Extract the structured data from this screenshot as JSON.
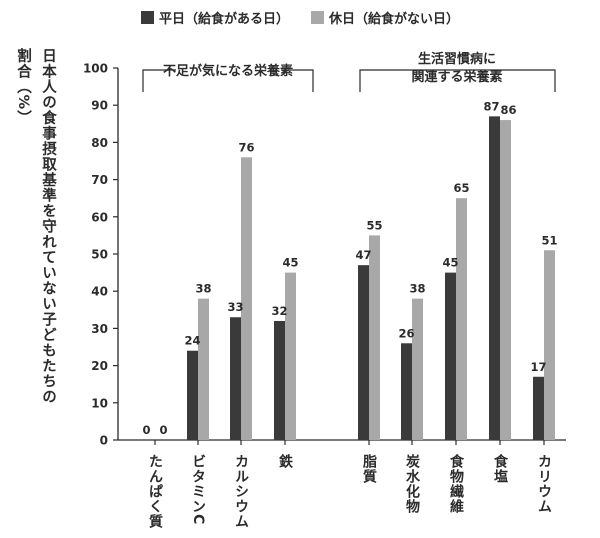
{
  "legend": {
    "weekday": "平日（給食がある日）",
    "holiday": "休日（給食がない日）"
  },
  "colors": {
    "weekday": "#3a3a3a",
    "holiday": "#a8a8a8",
    "axis": "#2b2b2b"
  },
  "groups": {
    "left": "不足が気になる栄養素",
    "right_line1": "生活習慣病に",
    "right_line2": "関連する栄養素"
  },
  "chart_data": {
    "type": "bar",
    "ylabel": "日本人の食事摂取基準を守れていない子どもたちの割合（%）",
    "ylim": [
      0,
      100
    ],
    "yticks": [
      "0",
      "10",
      "20",
      "30",
      "40",
      "50",
      "60",
      "70",
      "80",
      "90",
      "100"
    ],
    "categories": [
      "たんぱく質",
      "ビタミンC",
      "カルシウム",
      "鉄",
      "脂質",
      "炭水化物",
      "食物繊維",
      "食塩",
      "カリウム"
    ],
    "series": [
      {
        "name": "平日（給食がある日）",
        "values": [
          0,
          24,
          33,
          32,
          47,
          26,
          45,
          87,
          17
        ]
      },
      {
        "name": "休日（給食がない日）",
        "values": [
          0,
          38,
          76,
          45,
          55,
          38,
          65,
          86,
          51
        ]
      }
    ],
    "value_labels": {
      "weekday": [
        "0",
        "24",
        "33",
        "32",
        "47",
        "26",
        "45",
        "87",
        "17"
      ],
      "holiday": [
        "0",
        "38",
        "76",
        "45",
        "55",
        "38",
        "65",
        "86",
        "51"
      ]
    }
  }
}
